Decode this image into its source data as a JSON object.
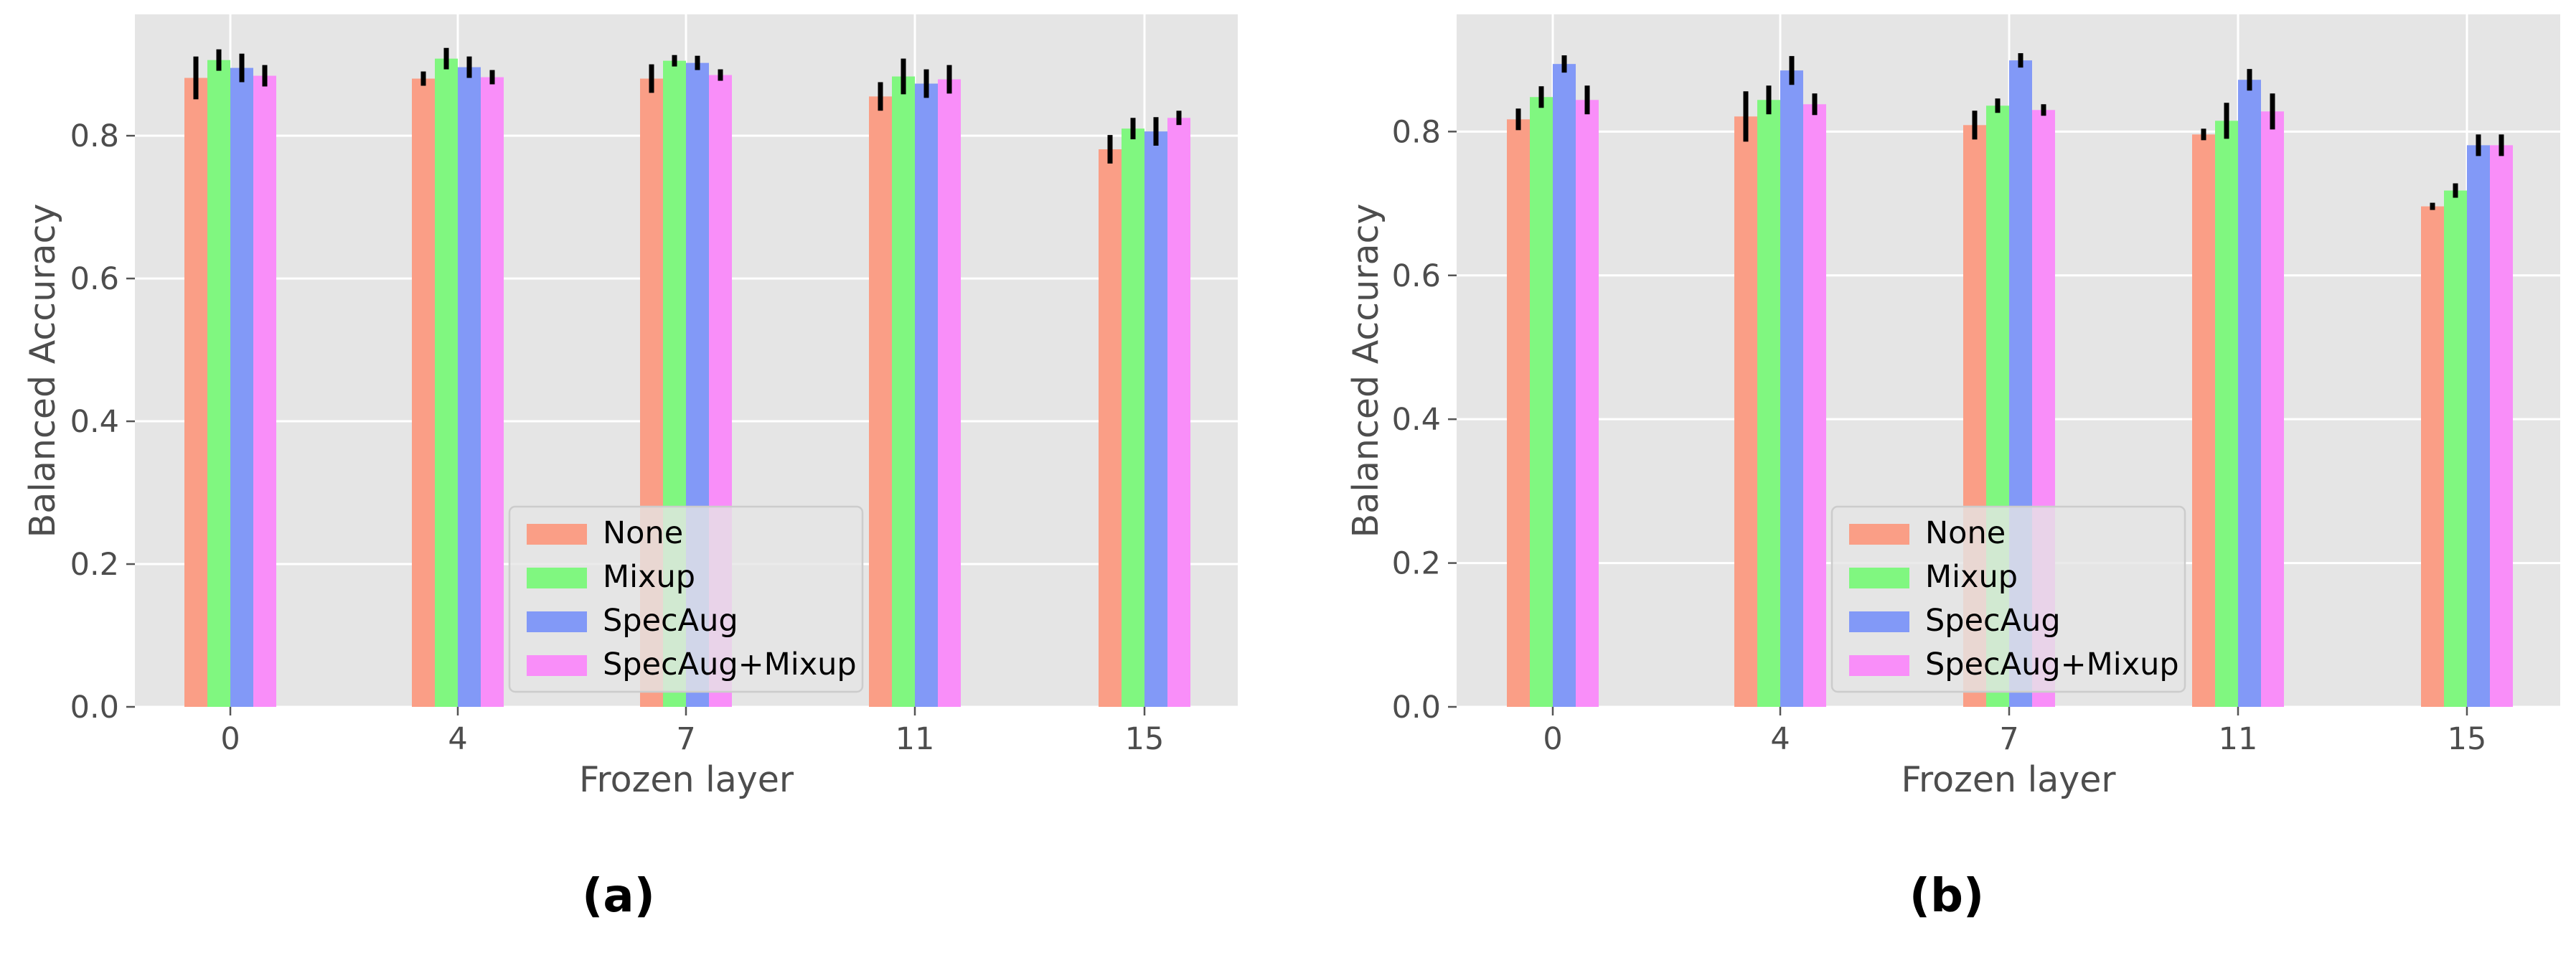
{
  "colors": {
    "panel_bg": "#e5e5e5",
    "grid": "#ffffff",
    "text": "#4d4d4d",
    "errbar": "#000000"
  },
  "chart_data": [
    {
      "type": "bar",
      "panel_label": "(a)",
      "categories": [
        "0",
        "4",
        "7",
        "11",
        "15"
      ],
      "xlabel": "Frozen layer",
      "ylabel": "Balanced Accuracy",
      "ylim": [
        0,
        0.97
      ],
      "yticks": [
        0.0,
        0.2,
        0.4,
        0.6,
        0.8
      ],
      "ytick_labels": [
        "0.0",
        "0.2",
        "0.4",
        "0.6",
        "0.8"
      ],
      "grid": true,
      "legend_position": "lower-center",
      "series": [
        {
          "name": "None",
          "color": "#fa9e86",
          "values": [
            0.881,
            0.88,
            0.88,
            0.855,
            0.781
          ],
          "errors": [
            0.03,
            0.01,
            0.02,
            0.02,
            0.02
          ]
        },
        {
          "name": "Mixup",
          "color": "#80f780",
          "values": [
            0.906,
            0.908,
            0.905,
            0.883,
            0.81
          ],
          "errors": [
            0.015,
            0.015,
            0.008,
            0.025,
            0.015
          ]
        },
        {
          "name": "SpecAug",
          "color": "#8299f7",
          "values": [
            0.895,
            0.896,
            0.902,
            0.873,
            0.806
          ],
          "errors": [
            0.02,
            0.015,
            0.01,
            0.02,
            0.02
          ]
        },
        {
          "name": "SpecAug+Mixup",
          "color": "#f98ef9",
          "values": [
            0.884,
            0.882,
            0.885,
            0.879,
            0.825
          ],
          "errors": [
            0.015,
            0.01,
            0.008,
            0.02,
            0.01
          ]
        }
      ]
    },
    {
      "type": "bar",
      "panel_label": "(b)",
      "categories": [
        "0",
        "4",
        "7",
        "11",
        "15"
      ],
      "xlabel": "Frozen layer",
      "ylabel": "Balanced Accuracy",
      "ylim": [
        0,
        0.963
      ],
      "yticks": [
        0.0,
        0.2,
        0.4,
        0.6,
        0.8
      ],
      "ytick_labels": [
        "0.0",
        "0.2",
        "0.4",
        "0.6",
        "0.8"
      ],
      "grid": true,
      "legend_position": "lower-center",
      "series": [
        {
          "name": "None",
          "color": "#fa9e86",
          "values": [
            0.817,
            0.821,
            0.809,
            0.796,
            0.696
          ],
          "errors": [
            0.015,
            0.035,
            0.02,
            0.008,
            0.005
          ]
        },
        {
          "name": "Mixup",
          "color": "#80f780",
          "values": [
            0.848,
            0.844,
            0.836,
            0.815,
            0.718
          ],
          "errors": [
            0.015,
            0.02,
            0.01,
            0.025,
            0.01
          ]
        },
        {
          "name": "SpecAug",
          "color": "#8299f7",
          "values": [
            0.894,
            0.885,
            0.899,
            0.872,
            0.781
          ],
          "errors": [
            0.012,
            0.02,
            0.01,
            0.015,
            0.015
          ]
        },
        {
          "name": "SpecAug+Mixup",
          "color": "#f98ef9",
          "values": [
            0.844,
            0.838,
            0.83,
            0.828,
            0.781
          ],
          "errors": [
            0.02,
            0.015,
            0.008,
            0.025,
            0.015
          ]
        }
      ]
    }
  ]
}
